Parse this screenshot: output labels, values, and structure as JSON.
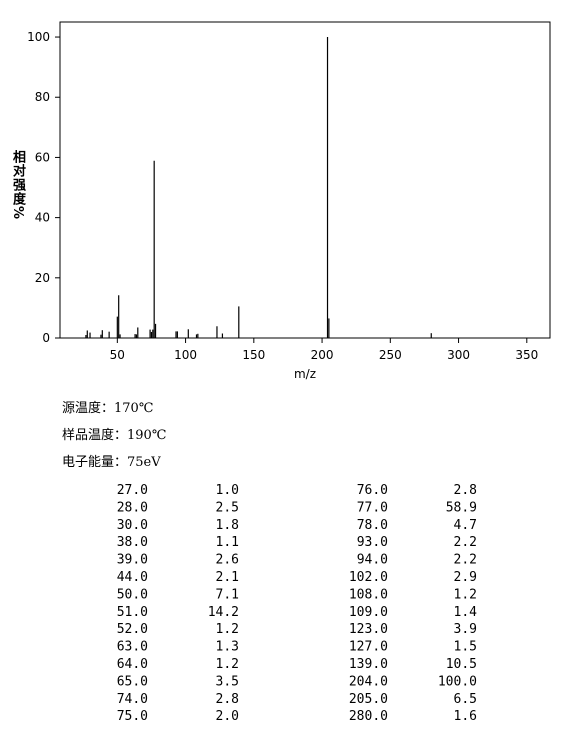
{
  "chart_data": {
    "type": "bar",
    "ylabel": "相对强度%",
    "xlabel": "m/z",
    "color": "#000000",
    "xlim": [
      8,
      367
    ],
    "ylim": [
      0,
      105
    ],
    "xticks": [
      50,
      100,
      150,
      200,
      250,
      300,
      350
    ],
    "yticks": [
      0,
      20,
      40,
      60,
      80,
      100
    ],
    "x": [
      27,
      28,
      30,
      38,
      39,
      44,
      50,
      51,
      52,
      63,
      64,
      65,
      74,
      75,
      76,
      77,
      78,
      93,
      94,
      102,
      108,
      109,
      123,
      127,
      139,
      204,
      205,
      280
    ],
    "x_labels": [
      "27.0",
      "28.0",
      "30.0",
      "38.0",
      "39.0",
      "44.0",
      "50.0",
      "51.0",
      "52.0",
      "63.0",
      "64.0",
      "65.0",
      "74.0",
      "75.0",
      "76.0",
      "77.0",
      "78.0",
      "93.0",
      "94.0",
      "102.0",
      "108.0",
      "109.0",
      "123.0",
      "127.0",
      "139.0",
      "204.0",
      "205.0",
      "280.0"
    ],
    "values": [
      1.0,
      2.5,
      1.8,
      1.1,
      2.6,
      2.1,
      7.1,
      14.2,
      1.2,
      1.3,
      1.2,
      3.5,
      2.8,
      2.0,
      2.8,
      58.9,
      4.7,
      2.2,
      2.2,
      2.9,
      1.2,
      1.4,
      3.9,
      1.5,
      10.5,
      100,
      6.5,
      1.6
    ],
    "value_labels": [
      "1.0",
      "2.5",
      "1.8",
      "1.1",
      "2.6",
      "2.1",
      "7.1",
      "14.2",
      "1.2",
      "1.3",
      "1.2",
      "3.5",
      "2.8",
      "2.0",
      "2.8",
      "58.9",
      "4.7",
      "2.2",
      "2.2",
      "2.9",
      "1.2",
      "1.4",
      "3.9",
      "1.5",
      "10.5",
      "100.0",
      "6.5",
      "1.6"
    ]
  },
  "conditions": [
    "源温度：170℃",
    "样品温度：190℃",
    "电子能量：75eV"
  ]
}
